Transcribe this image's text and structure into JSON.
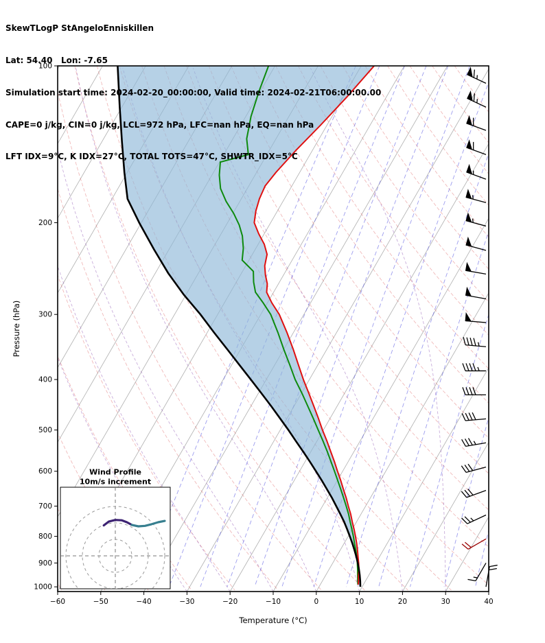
{
  "header": {
    "lines": [
      "SkewTLogP StAngeloEnniskillen",
      "Lat: 54.40   Lon: -7.65",
      "Simulation start time: 2024-02-20_00:00:00, Valid time: 2024-02-21T06:00:00.00",
      "CAPE=0 j/kg, CIN=0 j/kg, LCL=972 hPa, LFC=nan hPa, EQ=nan hPa",
      "LFT IDX=9°C, K IDX=27°C, TOTAL TOTS=47°C, SHWTR_IDX=5°C"
    ]
  },
  "chart_data": {
    "type": "skewt",
    "xlabel": "Temperature (°C)",
    "ylabel": "Pressure (hPa)",
    "xlim": [
      -60,
      40
    ],
    "pressure_lim": [
      100,
      1021
    ],
    "skew_angle_deg": 30,
    "x_ticks": [
      -60,
      -50,
      -40,
      -30,
      -20,
      -10,
      0,
      10,
      20,
      30,
      40
    ],
    "pressure_ticks": [
      100,
      200,
      300,
      400,
      500,
      600,
      700,
      800,
      900,
      1000
    ],
    "profiles": {
      "temperature": [
        [
          100,
          -57.0
        ],
        [
          115,
          -59.2
        ],
        [
          130,
          -61.5
        ],
        [
          145,
          -63.8
        ],
        [
          160,
          -65.5
        ],
        [
          170,
          -66.2
        ],
        [
          180,
          -65.8
        ],
        [
          190,
          -65.0
        ],
        [
          200,
          -63.8
        ],
        [
          210,
          -61.3
        ],
        [
          220,
          -58.6
        ],
        [
          230,
          -56.6
        ],
        [
          242,
          -55.6
        ],
        [
          252,
          -54.2
        ],
        [
          262,
          -52.6
        ],
        [
          272,
          -51.6
        ],
        [
          285,
          -49.0
        ],
        [
          300,
          -45.7
        ],
        [
          325,
          -41.5
        ],
        [
          350,
          -37.8
        ],
        [
          375,
          -34.5
        ],
        [
          400,
          -31.4
        ],
        [
          425,
          -28.3
        ],
        [
          450,
          -25.4
        ],
        [
          475,
          -22.7
        ],
        [
          500,
          -20.2
        ],
        [
          525,
          -17.7
        ],
        [
          550,
          -15.4
        ],
        [
          575,
          -13.2
        ],
        [
          600,
          -11.2
        ],
        [
          625,
          -9.2
        ],
        [
          650,
          -7.4
        ],
        [
          675,
          -5.6
        ],
        [
          700,
          -4.0
        ],
        [
          725,
          -2.4
        ],
        [
          750,
          -1.0
        ],
        [
          775,
          0.4
        ],
        [
          800,
          1.7
        ],
        [
          825,
          2.9
        ],
        [
          850,
          4.0
        ],
        [
          875,
          5.0
        ],
        [
          900,
          6.0
        ],
        [
          925,
          6.9
        ],
        [
          950,
          7.6
        ],
        [
          975,
          8.4
        ],
        [
          990,
          8.8
        ]
      ],
      "dewpoint": [
        [
          100,
          -81.5
        ],
        [
          112,
          -80.3
        ],
        [
          125,
          -78.8
        ],
        [
          138,
          -76.8
        ],
        [
          148,
          -74.3
        ],
        [
          153,
          -79.8
        ],
        [
          162,
          -78.3
        ],
        [
          172,
          -76.2
        ],
        [
          182,
          -73.2
        ],
        [
          192,
          -69.8
        ],
        [
          202,
          -67.0
        ],
        [
          212,
          -64.8
        ],
        [
          224,
          -62.9
        ],
        [
          236,
          -61.6
        ],
        [
          248,
          -57.5
        ],
        [
          260,
          -56.0
        ],
        [
          272,
          -54.2
        ],
        [
          285,
          -51.0
        ],
        [
          300,
          -47.7
        ],
        [
          325,
          -43.6
        ],
        [
          350,
          -40.0
        ],
        [
          375,
          -36.5
        ],
        [
          400,
          -33.3
        ],
        [
          425,
          -29.9
        ],
        [
          450,
          -26.8
        ],
        [
          475,
          -23.9
        ],
        [
          500,
          -21.2
        ],
        [
          525,
          -18.6
        ],
        [
          550,
          -16.2
        ],
        [
          575,
          -14.0
        ],
        [
          600,
          -11.9
        ],
        [
          625,
          -9.9
        ],
        [
          650,
          -8.0
        ],
        [
          675,
          -6.2
        ],
        [
          700,
          -4.5
        ],
        [
          725,
          -2.9
        ],
        [
          750,
          -1.5
        ],
        [
          775,
          -0.1
        ],
        [
          800,
          1.2
        ],
        [
          825,
          2.4
        ],
        [
          850,
          3.6
        ],
        [
          875,
          4.7
        ],
        [
          900,
          5.7
        ],
        [
          925,
          6.6
        ],
        [
          950,
          7.4
        ],
        [
          975,
          8.2
        ],
        [
          990,
          8.7
        ]
      ],
      "parcel": [
        [
          100,
          -116.5
        ],
        [
          120,
          -110.5
        ],
        [
          140,
          -105.3
        ],
        [
          160,
          -100.7
        ],
        [
          180,
          -96.4
        ],
        [
          200,
          -90.5
        ],
        [
          225,
          -83.5
        ],
        [
          250,
          -77.0
        ],
        [
          275,
          -70.5
        ],
        [
          300,
          -64.0
        ],
        [
          325,
          -58.4
        ],
        [
          350,
          -53.1
        ],
        [
          375,
          -48.2
        ],
        [
          400,
          -43.6
        ],
        [
          425,
          -39.3
        ],
        [
          450,
          -35.3
        ],
        [
          475,
          -31.6
        ],
        [
          500,
          -28.1
        ],
        [
          525,
          -24.9
        ],
        [
          550,
          -21.8
        ],
        [
          575,
          -18.9
        ],
        [
          600,
          -16.2
        ],
        [
          625,
          -13.6
        ],
        [
          650,
          -11.2
        ],
        [
          675,
          -8.9
        ],
        [
          700,
          -6.8
        ],
        [
          725,
          -4.8
        ],
        [
          750,
          -2.9
        ],
        [
          775,
          -1.2
        ],
        [
          800,
          0.4
        ],
        [
          825,
          1.9
        ],
        [
          850,
          3.3
        ],
        [
          875,
          4.6
        ],
        [
          900,
          5.8
        ],
        [
          925,
          6.9
        ],
        [
          950,
          7.9
        ],
        [
          975,
          8.8
        ],
        [
          1000,
          9.6
        ]
      ]
    },
    "background": {
      "isotherms": {
        "start": -160,
        "end": 40,
        "step": 10
      },
      "dry_adiabats_theta_K": {
        "start": 183,
        "end": 453,
        "step": 10
      },
      "moist_adiabats_start_C": [
        -30,
        -20,
        -10,
        0,
        10,
        20,
        30
      ],
      "mixing_ratio_g_kg": [
        0.1,
        0.2,
        0.4,
        0.7,
        1.2,
        2,
        3.5,
        6,
        10,
        16,
        26,
        40
      ]
    },
    "winds": [
      {
        "p": 108,
        "spd": 65,
        "dir": 295
      },
      {
        "p": 120,
        "spd": 65,
        "dir": 295
      },
      {
        "p": 133,
        "spd": 60,
        "dir": 290
      },
      {
        "p": 148,
        "spd": 60,
        "dir": 290
      },
      {
        "p": 165,
        "spd": 55,
        "dir": 290
      },
      {
        "p": 183,
        "spd": 55,
        "dir": 285
      },
      {
        "p": 203,
        "spd": 55,
        "dir": 285
      },
      {
        "p": 226,
        "spd": 50,
        "dir": 285
      },
      {
        "p": 251,
        "spd": 50,
        "dir": 280
      },
      {
        "p": 280,
        "spd": 50,
        "dir": 280
      },
      {
        "p": 311,
        "spd": 50,
        "dir": 275
      },
      {
        "p": 346,
        "spd": 45,
        "dir": 275
      },
      {
        "p": 385,
        "spd": 45,
        "dir": 270
      },
      {
        "p": 428,
        "spd": 40,
        "dir": 270
      },
      {
        "p": 476,
        "spd": 40,
        "dir": 265
      },
      {
        "p": 529,
        "spd": 35,
        "dir": 260
      },
      {
        "p": 589,
        "spd": 30,
        "dir": 255
      },
      {
        "p": 653,
        "spd": 30,
        "dir": 250
      },
      {
        "p": 728,
        "spd": 25,
        "dir": 245
      },
      {
        "p": 809,
        "spd": 20,
        "dir": 240,
        "color": "#990000"
      },
      {
        "p": 900,
        "spd": 15,
        "dir": 210
      },
      {
        "p": 1000,
        "spd": 20,
        "dir": 10
      }
    ],
    "hodograph": {
      "title_lines": [
        "Wind Profile",
        "10m/s increment"
      ],
      "rings_ms": [
        10,
        20,
        30
      ],
      "series": [
        {
          "name": "lower-level",
          "color": "#3d2373",
          "points_uv": [
            [
              -7,
              18.5
            ],
            [
              -4,
              20.8
            ],
            [
              0,
              21.8
            ],
            [
              4,
              21.6
            ],
            [
              7,
              20.4
            ],
            [
              10,
              18.8
            ]
          ]
        },
        {
          "name": "upper-level",
          "color": "#377f8f",
          "points_uv": [
            [
              10,
              18.8
            ],
            [
              14,
              17.9
            ],
            [
              18,
              18.2
            ],
            [
              22,
              19.2
            ],
            [
              26,
              20.4
            ],
            [
              30,
              21.2
            ]
          ]
        }
      ]
    },
    "colors": {
      "temperature": "#e01010",
      "dewpoint": "#0d8a0d",
      "parcel": "#000000",
      "shade": "#8fb8d8",
      "isotherm": "#9b9b9b",
      "dry_adiabat": "#e06666",
      "moist_adiabat": "#9966bb",
      "mixing_ratio": "#4a4ae0",
      "barb": "#000000",
      "hodo_ring": "#999999",
      "hodo_cross": "#777777"
    }
  }
}
